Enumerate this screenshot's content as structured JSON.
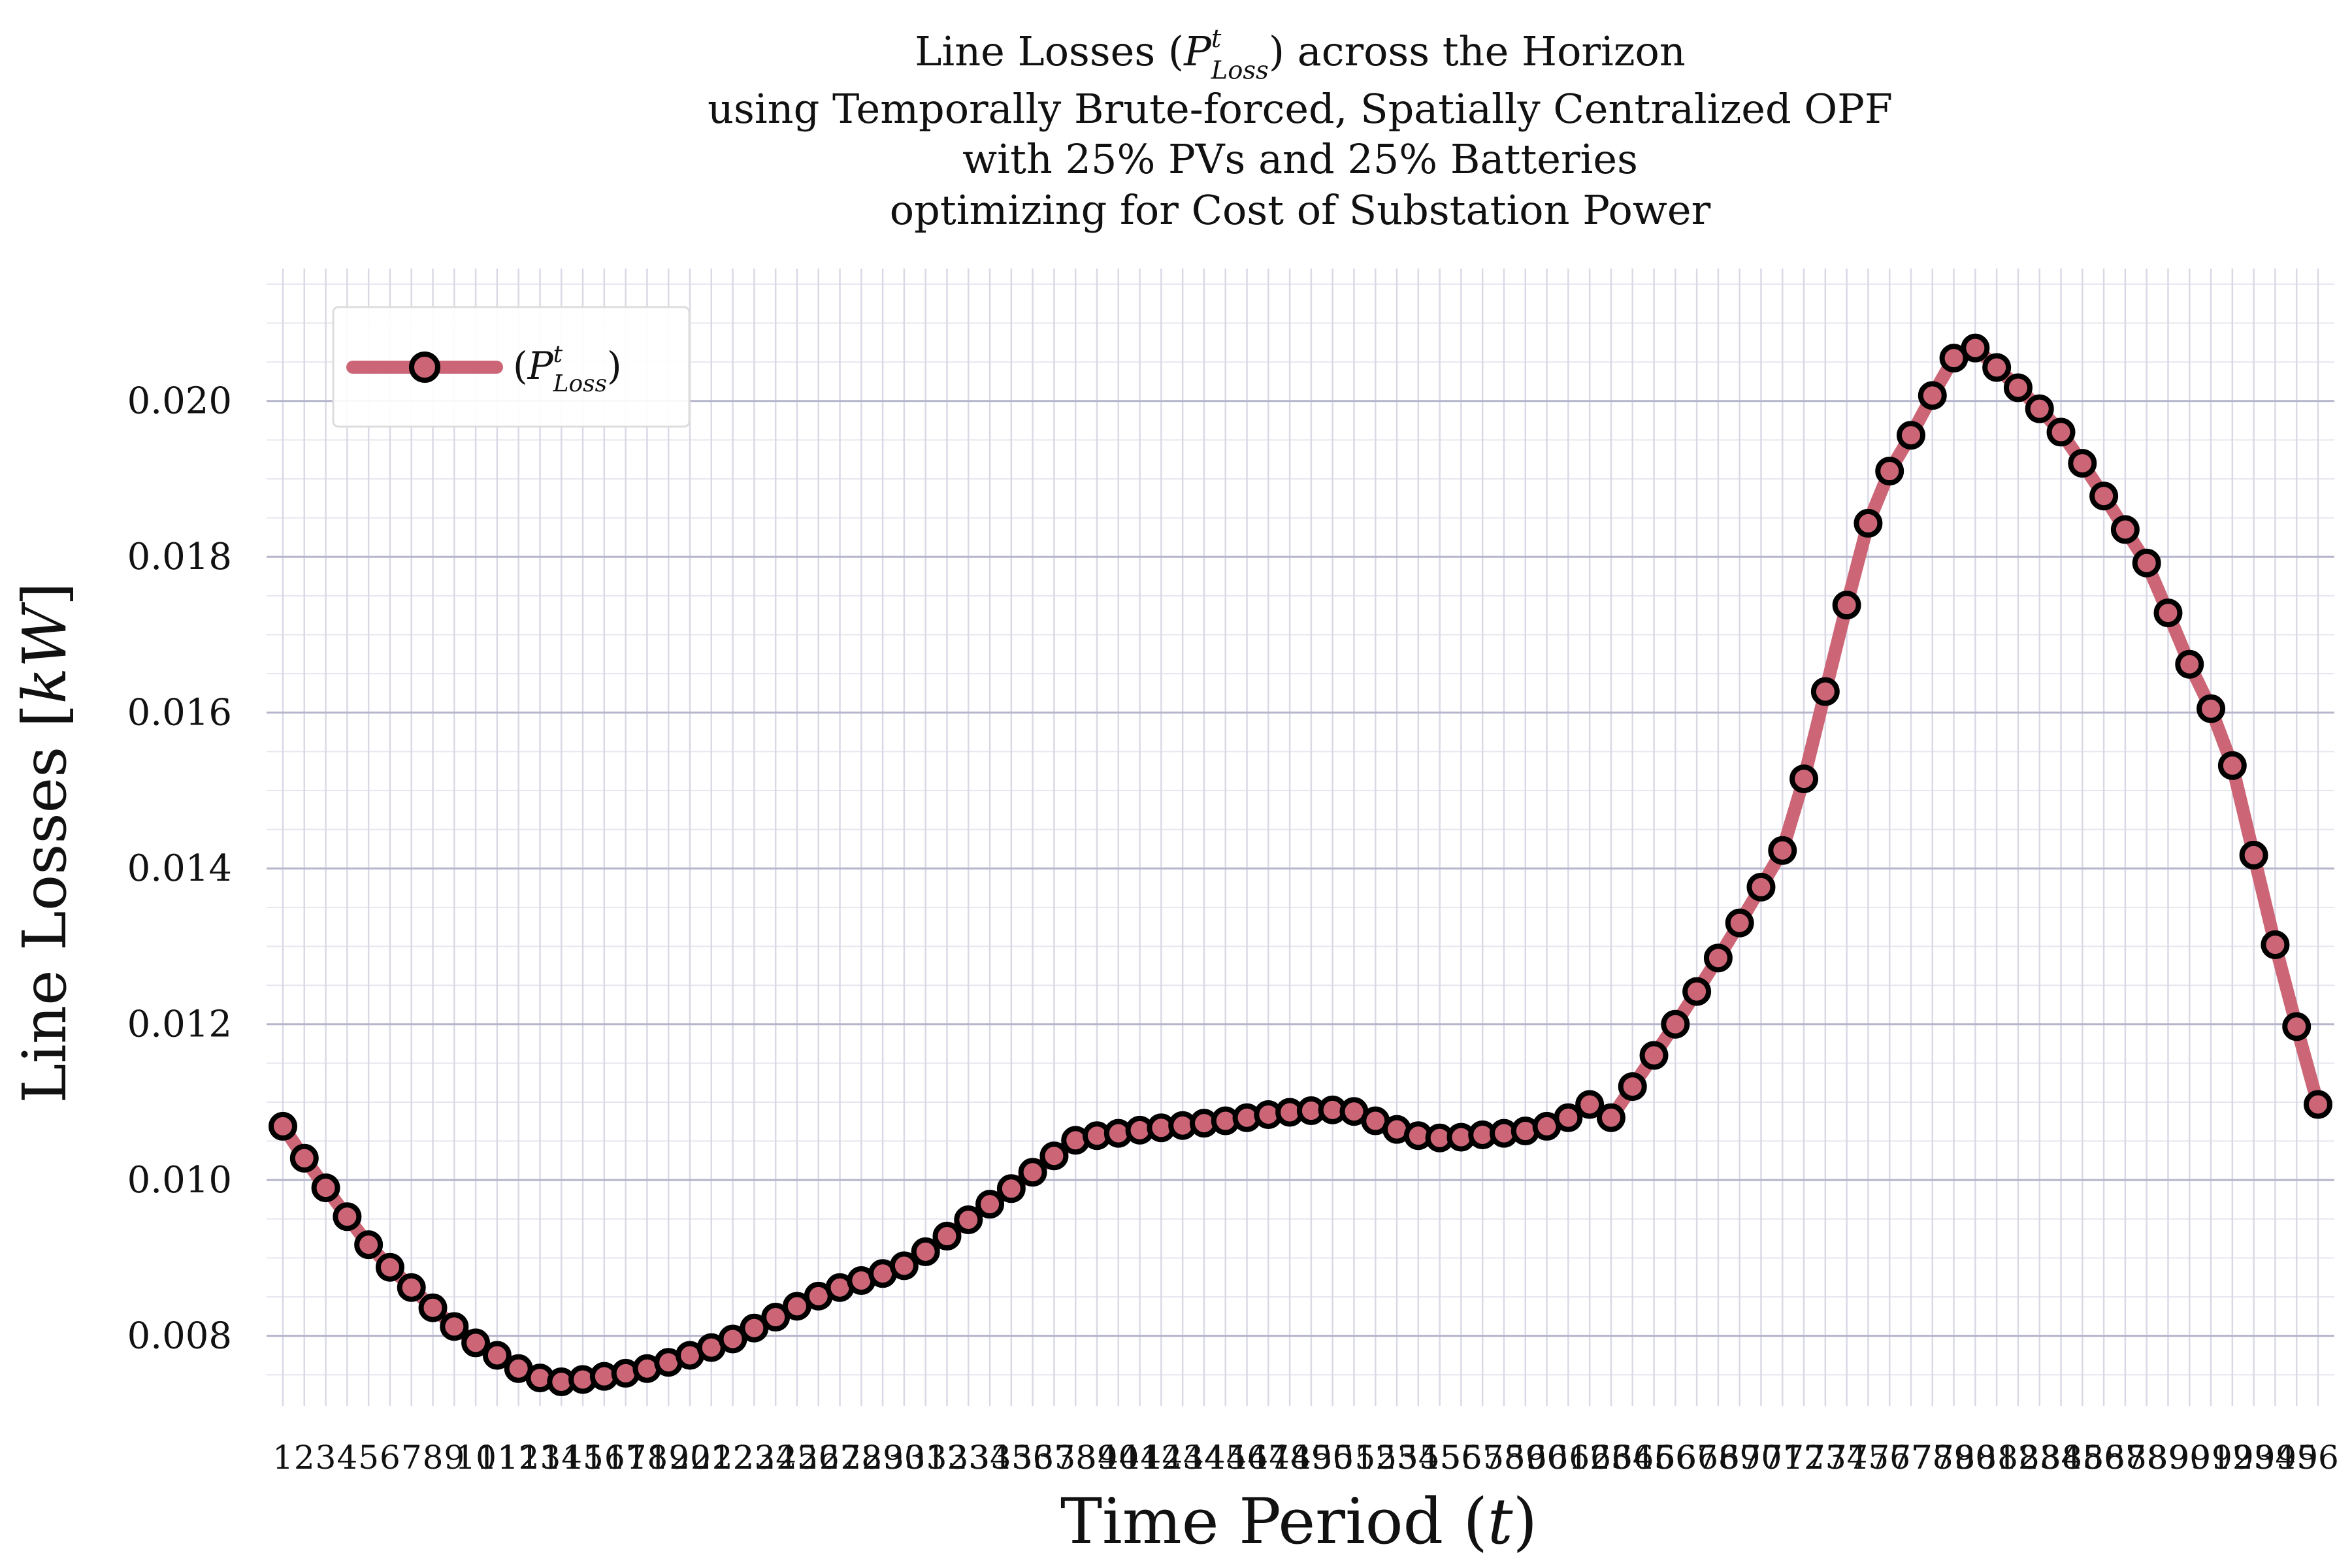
{
  "chart_data": {
    "type": "line",
    "title_lines": [
      "Line Losses ($P^t_{Loss}$) across the Horizon",
      "using Temporally Brute-forced, Spatially Centralized OPF",
      "with 25% PVs and 25% Batteries",
      "optimizing for Cost of Substation Power"
    ],
    "xlabel": "Time Period ($t$)",
    "ylabel": "Line Losses [$kW$]",
    "ylim": [
      0.0071,
      0.0217
    ],
    "yticks": [
      "0.008",
      "0.010",
      "0.012",
      "0.014",
      "0.016",
      "0.018",
      "0.020"
    ],
    "ytick_values": [
      0.008,
      0.01,
      0.012,
      0.014,
      0.016,
      0.018,
      0.02
    ],
    "grid": true,
    "legend_position": "top-left",
    "colors": {
      "line": "#cc6677",
      "marker_face": "#cc6677",
      "marker_edge": "#000000"
    },
    "x": [
      1,
      2,
      3,
      4,
      5,
      6,
      7,
      8,
      9,
      10,
      11,
      12,
      13,
      14,
      15,
      16,
      17,
      18,
      19,
      20,
      21,
      22,
      23,
      24,
      25,
      26,
      27,
      28,
      29,
      30,
      31,
      32,
      33,
      34,
      35,
      36,
      37,
      38,
      39,
      40,
      41,
      42,
      43,
      44,
      45,
      46,
      47,
      48,
      49,
      50,
      51,
      52,
      53,
      54,
      55,
      56,
      57,
      58,
      59,
      60,
      61,
      62,
      63,
      64,
      65,
      66,
      67,
      68,
      69,
      70,
      71,
      72,
      73,
      74,
      75,
      76,
      77,
      78,
      79,
      80,
      81,
      82,
      83,
      84,
      85,
      86,
      87,
      88,
      89,
      90,
      91,
      92,
      93,
      94,
      95,
      96
    ],
    "series": [
      {
        "name": "($P^t_{Loss}$)",
        "values": [
          0.01069,
          0.01028,
          0.0099,
          0.00953,
          0.00917,
          0.00888,
          0.00862,
          0.00836,
          0.00812,
          0.00791,
          0.00775,
          0.00758,
          0.00746,
          0.00741,
          0.00744,
          0.00748,
          0.00752,
          0.00758,
          0.00766,
          0.00775,
          0.00785,
          0.00796,
          0.0081,
          0.00824,
          0.00838,
          0.00851,
          0.00862,
          0.00871,
          0.0088,
          0.0089,
          0.00908,
          0.00928,
          0.00949,
          0.00969,
          0.00989,
          0.0101,
          0.01031,
          0.01051,
          0.01057,
          0.0106,
          0.01064,
          0.01067,
          0.0107,
          0.01073,
          0.01076,
          0.0108,
          0.01084,
          0.01087,
          0.01089,
          0.0109,
          0.01088,
          0.01076,
          0.01065,
          0.01057,
          0.01054,
          0.01055,
          0.01058,
          0.0106,
          0.01063,
          0.01069,
          0.0108,
          0.01097,
          0.0108,
          0.0112,
          0.0116,
          0.012,
          0.01242,
          0.01285,
          0.0133,
          0.01376,
          0.01423,
          0.01515,
          0.01627,
          0.01738,
          0.01843,
          0.0191,
          0.01956,
          0.02007,
          0.02055,
          0.02068,
          0.02043,
          0.02017,
          0.0199,
          0.0196,
          0.0192,
          0.01878,
          0.01835,
          0.01792,
          0.01728,
          0.01662,
          0.01605,
          0.01532,
          0.01417,
          0.01302,
          0.01197,
          0.01097
        ]
      }
    ]
  }
}
